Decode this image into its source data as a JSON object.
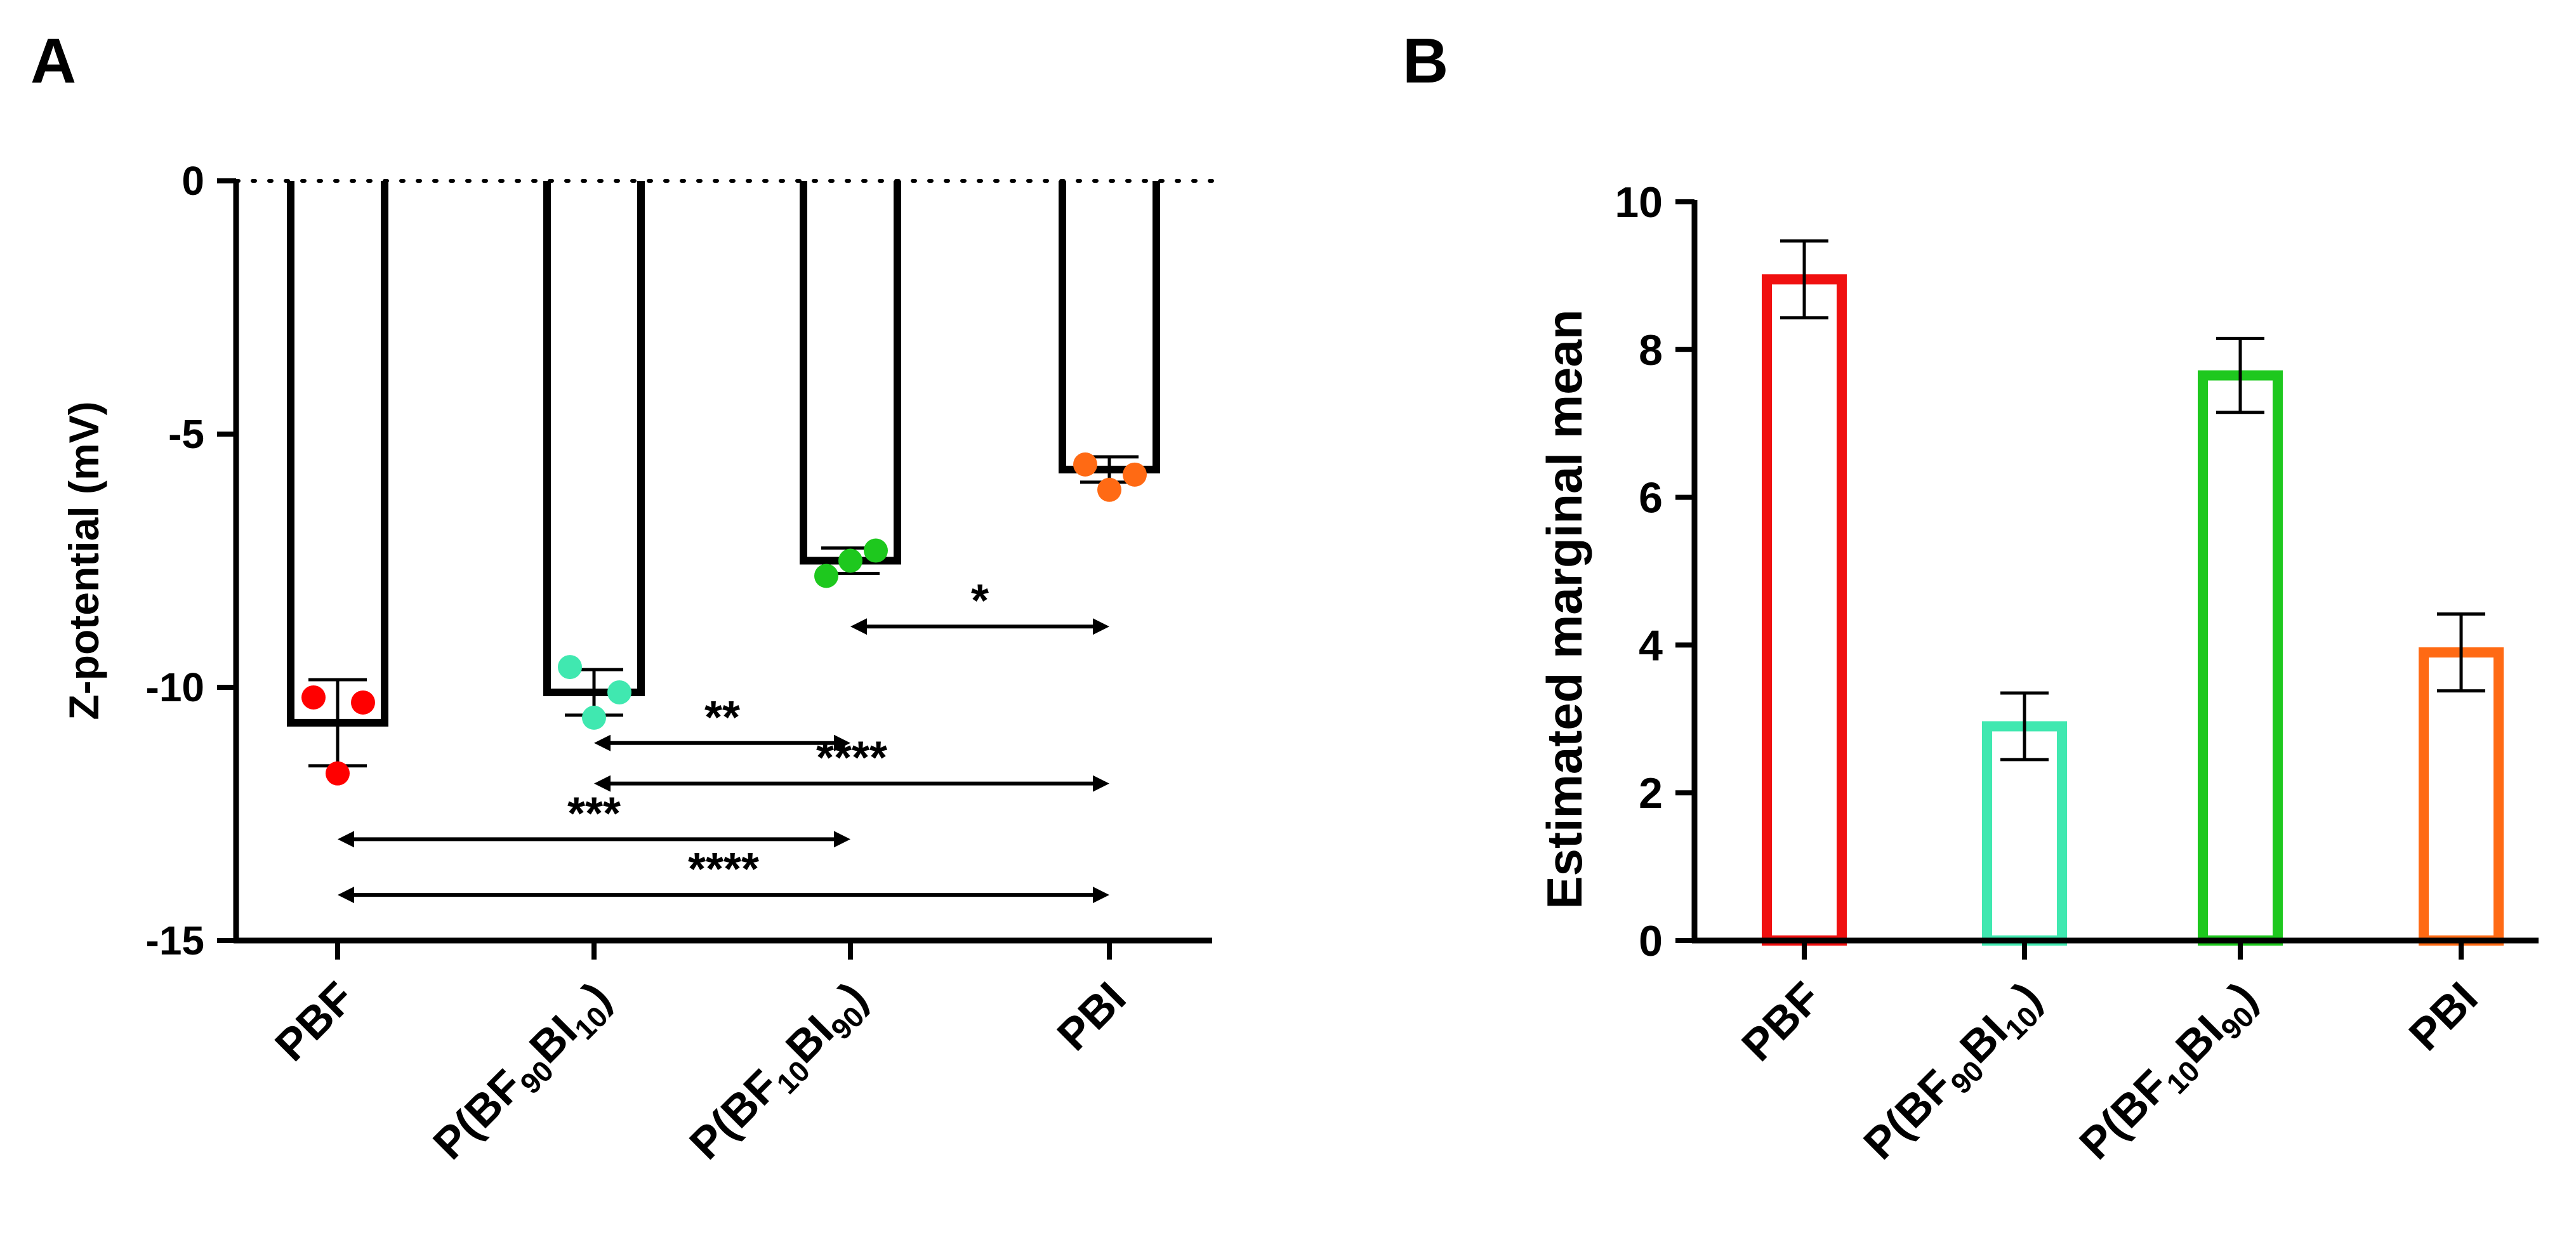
{
  "panels": {
    "a_letter": "A",
    "b_letter": "B"
  },
  "chart_data": [
    {
      "type": "bar",
      "panel": "A",
      "ylabel": "Z-potential (mV)",
      "ylim": [
        -15,
        0
      ],
      "yticks": [
        0,
        -5,
        -10,
        -15
      ],
      "ytick_labels": [
        "0",
        "-5",
        "-10",
        "-15"
      ],
      "zero_line": "dotted",
      "categories": [
        {
          "label": "PBF",
          "main": "PBF",
          "sub1": "",
          "mid": "",
          "sub2": "",
          "tail": ""
        },
        {
          "label": "P(BF90BI10)",
          "main": "P(BF",
          "sub1": "90",
          "mid": "BI",
          "sub2": "10",
          "tail": ")"
        },
        {
          "label": "P(BF10BI90)",
          "main": "P(BF",
          "sub1": "10",
          "mid": "BI",
          "sub2": "90",
          "tail": ")"
        },
        {
          "label": "PBI",
          "main": "PBI",
          "sub1": "",
          "mid": "",
          "sub2": "",
          "tail": ""
        }
      ],
      "values": [
        -10.7,
        -10.1,
        -7.5,
        -5.7
      ],
      "errors": [
        0.85,
        0.45,
        0.25,
        0.25
      ],
      "points": [
        [
          -10.2,
          -10.3,
          -11.7
        ],
        [
          -9.6,
          -10.1,
          -10.6
        ],
        [
          -7.8,
          -7.3,
          -7.5
        ],
        [
          -5.6,
          -5.8,
          -6.1
        ]
      ],
      "point_colors": [
        "#ff0000",
        "#40e8b0",
        "#1ec81e",
        "#ff6a14"
      ],
      "bar_color": "#000000",
      "significance": [
        {
          "from": 2,
          "to": 3,
          "label": "*",
          "y": -8.8
        },
        {
          "from": 1,
          "to": 2,
          "label": "**",
          "y": -11.1
        },
        {
          "from": 1,
          "to": 3,
          "label": "****",
          "y": -11.9
        },
        {
          "from": 0,
          "to": 2,
          "label": "***",
          "y": -13.0
        },
        {
          "from": 0,
          "to": 3,
          "label": "****",
          "y": -14.1
        }
      ]
    },
    {
      "type": "bar",
      "panel": "B",
      "ylabel": "Estimated marginal mean",
      "ylim": [
        0,
        10
      ],
      "yticks": [
        0,
        2,
        4,
        6,
        8,
        10
      ],
      "ytick_labels": [
        "0",
        "2",
        "4",
        "6",
        "8",
        "10"
      ],
      "categories": [
        {
          "label": "PBF",
          "main": "PBF",
          "sub1": "",
          "mid": "",
          "sub2": "",
          "tail": ""
        },
        {
          "label": "P(BF90BI10)",
          "main": "P(BF",
          "sub1": "90",
          "mid": "BI",
          "sub2": "10",
          "tail": ")"
        },
        {
          "label": "P(BF10BI90)",
          "main": "P(BF",
          "sub1": "10",
          "mid": "BI",
          "sub2": "90",
          "tail": ")"
        },
        {
          "label": "PBI",
          "main": "PBI",
          "sub1": "",
          "mid": "",
          "sub2": "",
          "tail": ""
        }
      ],
      "values": [
        8.95,
        2.9,
        7.65,
        3.9
      ],
      "errors": [
        0.52,
        0.45,
        0.5,
        0.52
      ],
      "bar_colors": [
        "#f01010",
        "#40e8b0",
        "#1ec81e",
        "#ff6a14"
      ]
    }
  ]
}
